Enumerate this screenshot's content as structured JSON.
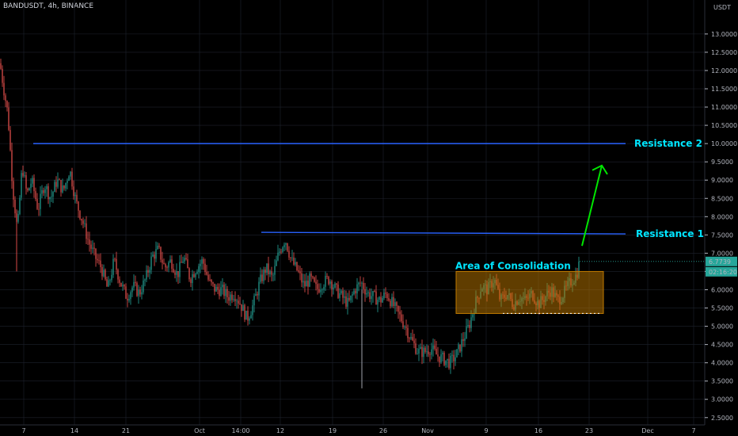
{
  "symbol_label": "BANDUSDT, 4h, BINANCE",
  "chart_data": {
    "type": "candlestick",
    "title": "",
    "xlabel": "",
    "ylabel": "",
    "currency_label": "USDT",
    "ylim": [
      2.3,
      13.8
    ],
    "y_ticks": [
      "13.0000",
      "12.5000",
      "12.0000",
      "11.5000",
      "11.0000",
      "10.5000",
      "10.0000",
      "9.5000",
      "9.0000",
      "8.5000",
      "8.0000",
      "7.5000",
      "7.0000",
      "6.5000",
      "6.0000",
      "5.5000",
      "5.0000",
      "4.5000",
      "4.0000",
      "3.5000",
      "3.0000",
      "2.5000"
    ],
    "x_ticks": [
      "7",
      "14",
      "21",
      "Oct",
      "14:00",
      "12",
      "19",
      "26",
      "Nov",
      "9",
      "16",
      "23",
      "Dec",
      "7"
    ],
    "last_price": "6.7739",
    "countdown": "02:16:20",
    "colors": {
      "up": "#26a69a",
      "down": "#ef5350",
      "resistance": "#2962ff",
      "annotation_text": "#00e5ff",
      "arrow": "#00e600",
      "box": "#c07a00"
    },
    "price_path": [
      [
        0,
        12.2
      ],
      [
        4,
        11.6
      ],
      [
        10,
        10.8
      ],
      [
        16,
        8.8
      ],
      [
        22,
        7.6
      ],
      [
        28,
        9.4
      ],
      [
        34,
        8.6
      ],
      [
        40,
        9.0
      ],
      [
        48,
        8.2
      ],
      [
        56,
        8.9
      ],
      [
        64,
        8.5
      ],
      [
        72,
        9.0
      ],
      [
        80,
        8.7
      ],
      [
        88,
        9.3
      ],
      [
        96,
        8.4
      ],
      [
        104,
        7.9
      ],
      [
        112,
        7.3
      ],
      [
        120,
        6.9
      ],
      [
        128,
        6.6
      ],
      [
        136,
        6.0
      ],
      [
        144,
        6.8
      ],
      [
        152,
        6.2
      ],
      [
        160,
        5.8
      ],
      [
        168,
        6.1
      ],
      [
        176,
        5.9
      ],
      [
        184,
        6.3
      ],
      [
        192,
        6.9
      ],
      [
        200,
        7.1
      ],
      [
        208,
        6.6
      ],
      [
        216,
        6.8
      ],
      [
        224,
        6.4
      ],
      [
        232,
        6.9
      ],
      [
        240,
        6.3
      ],
      [
        248,
        6.6
      ],
      [
        256,
        6.8
      ],
      [
        264,
        6.2
      ],
      [
        272,
        6.0
      ],
      [
        280,
        6.0
      ],
      [
        288,
        5.8
      ],
      [
        296,
        5.9
      ],
      [
        304,
        5.6
      ],
      [
        312,
        5.2
      ],
      [
        320,
        5.6
      ],
      [
        328,
        6.2
      ],
      [
        336,
        6.6
      ],
      [
        344,
        6.3
      ],
      [
        352,
        7.0
      ],
      [
        360,
        7.4
      ],
      [
        368,
        6.8
      ],
      [
        376,
        6.5
      ],
      [
        384,
        6.1
      ],
      [
        392,
        6.3
      ],
      [
        400,
        6.0
      ],
      [
        408,
        6.2
      ],
      [
        416,
        6.3
      ],
      [
        424,
        6.0
      ],
      [
        432,
        5.8
      ],
      [
        440,
        5.6
      ],
      [
        448,
        6.0
      ],
      [
        456,
        6.2
      ],
      [
        464,
        5.9
      ],
      [
        472,
        5.8
      ],
      [
        480,
        5.7
      ],
      [
        488,
        5.9
      ],
      [
        496,
        5.6
      ],
      [
        504,
        5.3
      ],
      [
        512,
        5.0
      ],
      [
        520,
        4.6
      ],
      [
        528,
        4.3
      ],
      [
        536,
        4.3
      ],
      [
        544,
        4.4
      ],
      [
        552,
        4.2
      ],
      [
        560,
        4.1
      ],
      [
        568,
        4.0
      ],
      [
        576,
        4.2
      ],
      [
        584,
        4.6
      ],
      [
        592,
        5.0
      ],
      [
        600,
        5.6
      ],
      [
        608,
        6.1
      ],
      [
        616,
        6.0
      ],
      [
        624,
        6.3
      ],
      [
        632,
        5.7
      ],
      [
        640,
        5.9
      ],
      [
        648,
        5.6
      ],
      [
        656,
        5.8
      ],
      [
        664,
        5.7
      ],
      [
        672,
        5.9
      ],
      [
        680,
        5.6
      ],
      [
        688,
        5.8
      ],
      [
        696,
        6.0
      ],
      [
        704,
        5.7
      ],
      [
        712,
        5.9
      ],
      [
        720,
        6.2
      ],
      [
        728,
        6.4
      ],
      [
        732,
        6.77
      ]
    ],
    "resistance_levels": [
      {
        "label": "Resistance 2",
        "value": 10.0
      },
      {
        "label": "Resistance 1",
        "value": 7.55
      }
    ],
    "consolidation": {
      "label": "Area of Consolidation",
      "low": 5.35,
      "high": 6.5
    },
    "support_line": 5.35,
    "arrow": {
      "from": 7.2,
      "to": 9.4
    }
  }
}
